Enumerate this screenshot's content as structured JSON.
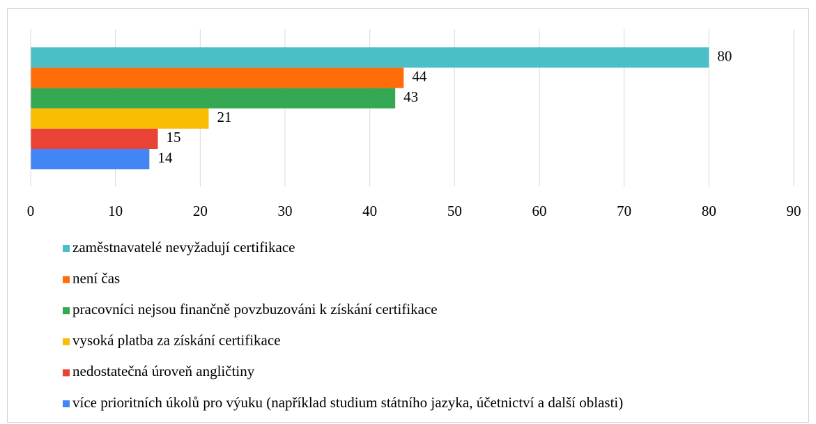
{
  "chart_data": {
    "type": "bar",
    "orientation": "horizontal",
    "series": [
      {
        "name": "zaměstnavatelé nevyžadují certifikace",
        "color": "#4bbfc8",
        "values": [
          80
        ]
      },
      {
        "name": "není čas",
        "color": "#ff6d0a",
        "values": [
          44
        ]
      },
      {
        "name": "pracovníci nejsou finančně povzbuzováni k získání certifikace",
        "color": "#35a853",
        "values": [
          43
        ]
      },
      {
        "name": "vysoká platba za získání certifikace",
        "color": "#fbbc04",
        "values": [
          21
        ]
      },
      {
        "name": "nedostatečná úroveň angličtiny",
        "color": "#ea4335",
        "values": [
          15
        ]
      },
      {
        "name": "více prioritních úkolů pro výuku (například studium státního jazyka, účetnictví a další oblasti)",
        "color": "#4285f4",
        "values": [
          14
        ]
      }
    ],
    "xlim": [
      0,
      90
    ],
    "xticks": [
      0,
      10,
      20,
      30,
      40,
      50,
      60,
      70,
      80,
      90
    ],
    "grid": true,
    "legend": "bottom"
  }
}
